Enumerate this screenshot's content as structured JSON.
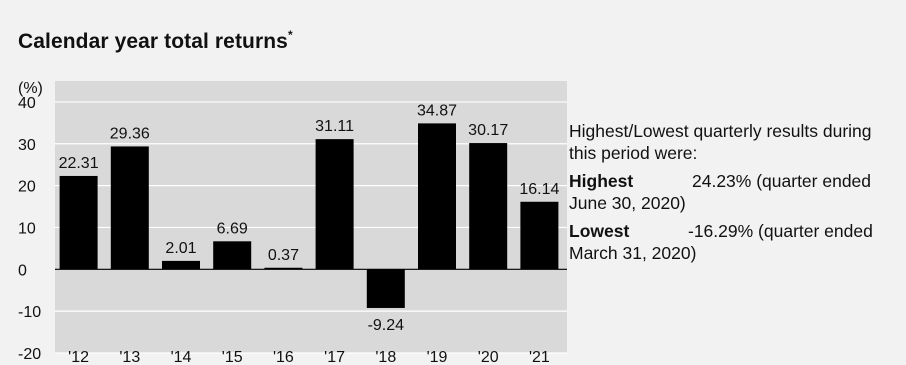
{
  "title": "Calendar year total returns",
  "title_marker": "*",
  "colors": {
    "background": "#f2f2f2",
    "plot_area": "#d9d9d9",
    "bar": "#000000",
    "gridline": "#ffffff",
    "text": "#111111"
  },
  "chart_data": {
    "type": "bar",
    "title": "Calendar year total returns",
    "ylabel": "(%)",
    "xlabel": "",
    "categories": [
      "'12",
      "'13",
      "'14",
      "'15",
      "'16",
      "'17",
      "'18",
      "'19",
      "'20",
      "'21"
    ],
    "values": [
      22.31,
      29.36,
      2.01,
      6.69,
      0.37,
      31.11,
      -9.24,
      34.87,
      30.17,
      16.14
    ],
    "value_labels": [
      "22.31",
      "29.36",
      "2.01",
      "6.69",
      "0.37",
      "31.11",
      "-9.24",
      "34.87",
      "30.17",
      "16.14"
    ],
    "ylim": [
      -20,
      40
    ],
    "yticks": [
      -20,
      -10,
      0,
      10,
      20,
      30,
      40
    ],
    "ytick_labels": [
      "-20",
      "-10",
      "0",
      "10",
      "20",
      "30",
      "40"
    ],
    "grid": true
  },
  "quarterly": {
    "intro": "Highest/Lowest quarterly results during this period were:",
    "highest_label": "Highest",
    "highest_value": "24.23% (quarter ended June 30, 2020)",
    "lowest_label": "Lowest",
    "lowest_value": "-16.29% (quarter ended March 31, 2020)"
  }
}
